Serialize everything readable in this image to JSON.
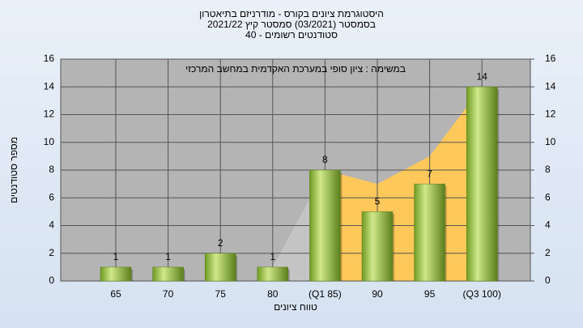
{
  "chart_data": {
    "type": "bar",
    "title": [
      "היסטוגרמת ציונים בקורס - מודרניזם בתיאטרון",
      "בסמסטר (03/2021) סמסטר קיץ 2021/22",
      "סטודנטים רשומים - 40"
    ],
    "annotation": "במשימה : ציון סופי במערכת האקדמית במחשב המרכזי",
    "x_label": "טווח ציונים",
    "y_label": "מספר סטודנטים",
    "categories": [
      "65",
      "70",
      "75",
      "80",
      "(Q1 85)",
      "90",
      "95",
      "(Q3 100)"
    ],
    "values": [
      1,
      1,
      2,
      1,
      8,
      5,
      7,
      14
    ],
    "color": "#8fba3a",
    "area": {
      "values": [
        null,
        null,
        null,
        1,
        8,
        7,
        9,
        14
      ],
      "colors": [
        "#c4c4c4",
        "#ffc85a"
      ]
    },
    "ylim": [
      0,
      16
    ],
    "yticks": [
      0,
      2,
      4,
      6,
      8,
      10,
      12,
      14,
      16
    ],
    "y2lim": [
      0,
      16
    ],
    "y2ticks": [
      0,
      2,
      4,
      6,
      8,
      10,
      12,
      14,
      16
    ],
    "grid": true
  }
}
